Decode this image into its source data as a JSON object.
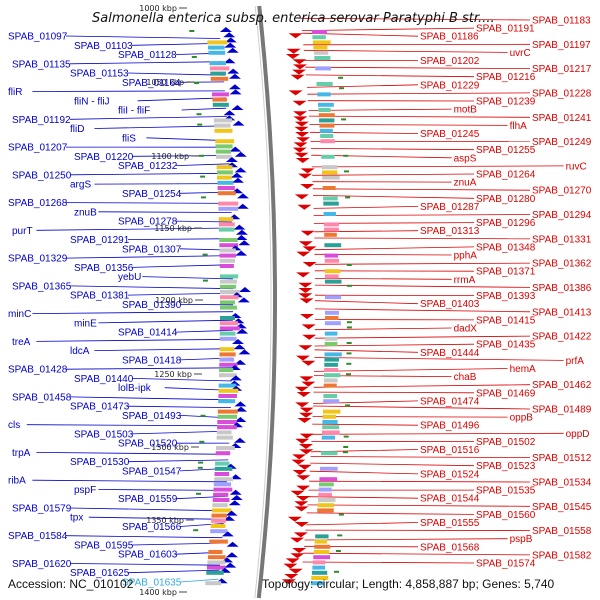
{
  "title": "Salmonella enterica subsp. enterica serovar Paratyphi B str....",
  "footer": {
    "accession": "Accession: NC_010102",
    "stats": "Topology: circular; Length: 4,858,887 bp; Genes: 5,740"
  },
  "colors": {
    "left_genes": "#0000cc",
    "right_genes": "#dd0000",
    "highlight": "#33aadd",
    "axis": "#777777",
    "tick": "#2e8b2e"
  },
  "ticks": [
    "1000 kbp",
    "1050 kbp",
    "1100 kbp",
    "1150 kbp",
    "1200 kbp",
    "1250 kbp",
    "1300 kbp",
    "1350 kbp",
    "1400 kbp"
  ],
  "left_labels": [
    "SPAB_01097",
    "SPAB_01103",
    "SPAB_01128",
    "SPAB_01135",
    "SPAB_01153",
    "SPAB_01164",
    "fliR",
    "fliN - fliJ",
    "fliI - fliF",
    "SPAB_01192",
    "fliD",
    "fliS",
    "SPAB_01207",
    "SPAB_01220",
    "SPAB_01232",
    "SPAB_01250",
    "argS",
    "SPAB_01254",
    "SPAB_01268",
    "znuB",
    "SPAB_01278",
    "purT",
    "SPAB_01291",
    "SPAB_01307",
    "SPAB_01329",
    "SPAB_01356",
    "yebU",
    "SPAB_01365",
    "SPAB_01381",
    "SPAB_01390",
    "minC",
    "minE",
    "SPAB_01414",
    "treA",
    "ldcA",
    "SPAB_01418",
    "SPAB_01428",
    "SPAB_01440",
    "lolB-ipk",
    "SPAB_01458",
    "SPAB_01473",
    "SPAB_01493",
    "cls",
    "SPAB_01503",
    "SPAB_01520",
    "trpA",
    "SPAB_01530",
    "SPAB_01547",
    "ribA",
    "pspF",
    "SPAB_01559",
    "SPAB_01579",
    "tpx",
    "SPAB_01566",
    "SPAB_01584",
    "SPAB_01595",
    "SPAB_01603",
    "SPAB_01620",
    "SPAB_01625",
    "SPAB_01635"
  ],
  "right_labels": [
    "SPAB_01183",
    "SPAB_01191",
    "SPAB_01186",
    "SPAB_01197",
    "uvrC",
    "SPAB_01202",
    "SPAB_01217",
    "SPAB_01216",
    "SPAB_01229",
    "SPAB_01228",
    "SPAB_01239",
    "motB",
    "SPAB_01241",
    "flhA",
    "SPAB_01245",
    "SPAB_01249",
    "SPAB_01255",
    "aspS",
    "ruvC",
    "SPAB_01264",
    "znuA",
    "SPAB_01270",
    "SPAB_01280",
    "SPAB_01287",
    "SPAB_01294",
    "SPAB_01296",
    "SPAB_01313",
    "SPAB_01331",
    "SPAB_01348",
    "pphA",
    "SPAB_01362",
    "SPAB_01371",
    "rrmA",
    "SPAB_01386",
    "SPAB_01393",
    "SPAB_01403",
    "SPAB_01413",
    "SPAB_01415",
    "dadX",
    "SPAB_01422",
    "SPAB_01435",
    "SPAB_01444",
    "prfA",
    "hemA",
    "chaB",
    "SPAB_01462",
    "SPAB_01469",
    "SPAB_01474",
    "SPAB_01489",
    "oppB",
    "SPAB_01496",
    "oppD",
    "SPAB_01502",
    "SPAB_01516",
    "SPAB_01512",
    "SPAB_01523",
    "SPAB_01524",
    "SPAB_01534",
    "SPAB_01535",
    "SPAB_01544",
    "SPAB_01545",
    "SPAB_01560",
    "SPAB_01555",
    "SPAB_01558",
    "pspB",
    "SPAB_01568",
    "SPAB_01582",
    "SPAB_01574"
  ]
}
